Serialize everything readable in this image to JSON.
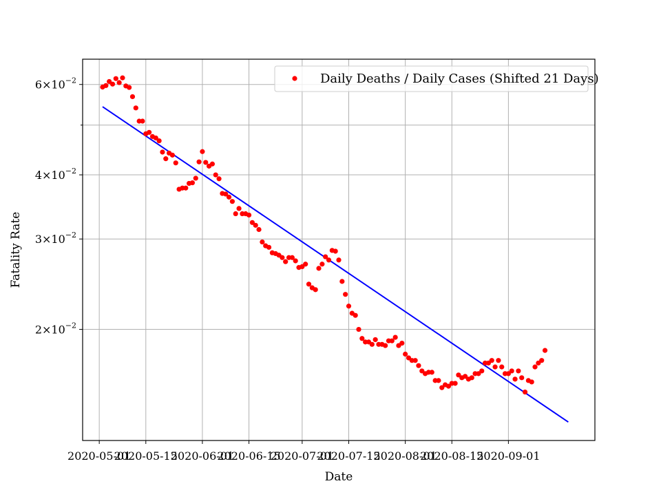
{
  "chart_data": {
    "type": "scatter",
    "title": "",
    "xlabel": "Date",
    "ylabel": "Fatality Rate",
    "y_scale": "log",
    "xlim": [
      "2020-04-26",
      "2020-09-27"
    ],
    "ylim": [
      0.01215,
      0.0672
    ],
    "grid": true,
    "legend_position": "top-right",
    "x_ticks": [
      "2020-05-01",
      "2020-05-15",
      "2020-06-01",
      "2020-06-15",
      "2020-07-01",
      "2020-07-15",
      "2020-08-01",
      "2020-08-15",
      "2020-09-01"
    ],
    "x_tick_labels": [
      "2020-05-01",
      "2020-05-15",
      "2020-06-01",
      "2020-06-15",
      "2020-07-01",
      "2020-07-15",
      "2020-08-01",
      "2020-08-15",
      "2020-09-01"
    ],
    "y_ticks": [
      0.02,
      0.03,
      0.04,
      0.06
    ],
    "y_tick_labels": [
      {
        "base": "2×10",
        "exp": "−2"
      },
      {
        "base": "3×10",
        "exp": "−2"
      },
      {
        "base": "4×10",
        "exp": "−2"
      },
      {
        "base": "6×10",
        "exp": "−2"
      }
    ],
    "y_minor_ticks": [
      0.05
    ],
    "series": [
      {
        "name": "Daily Deaths / Daily Cases (Shifted 21 Days)",
        "kind": "scatter",
        "color": "#ff0000",
        "start_date": "2020-05-02",
        "y": [
          0.0593,
          0.0597,
          0.0608,
          0.0601,
          0.0616,
          0.0605,
          0.0618,
          0.0596,
          0.0592,
          0.0568,
          0.054,
          0.0509,
          0.0509,
          0.0481,
          0.0484,
          0.0475,
          0.0472,
          0.0466,
          0.0443,
          0.043,
          0.0441,
          0.0437,
          0.0422,
          0.0375,
          0.0377,
          0.0377,
          0.0385,
          0.0386,
          0.0394,
          0.0424,
          0.0444,
          0.0423,
          0.0416,
          0.042,
          0.04,
          0.0393,
          0.0368,
          0.0367,
          0.0362,
          0.0355,
          0.0336,
          0.0344,
          0.0336,
          0.0336,
          0.0334,
          0.0323,
          0.0319,
          0.0313,
          0.0296,
          0.0291,
          0.0289,
          0.0282,
          0.0281,
          0.0279,
          0.0276,
          0.0271,
          0.0276,
          0.0276,
          0.0272,
          0.0264,
          0.0265,
          0.0268,
          0.0245,
          0.0241,
          0.0239,
          0.0263,
          0.0268,
          0.0277,
          0.0273,
          0.0285,
          0.0284,
          0.0273,
          0.0248,
          0.0234,
          0.0222,
          0.0215,
          0.0213,
          0.02,
          0.0192,
          0.0189,
          0.0189,
          0.0187,
          0.0191,
          0.0187,
          0.0187,
          0.0186,
          0.019,
          0.019,
          0.0193,
          0.0186,
          0.0188,
          0.0179,
          0.0176,
          0.0174,
          0.0174,
          0.017,
          0.0166,
          0.0164,
          0.0165,
          0.0165,
          0.0159,
          0.0159,
          0.0154,
          0.0156,
          0.0155,
          0.0157,
          0.0157,
          0.0163,
          0.0161,
          0.0162,
          0.016,
          0.0161,
          0.0164,
          0.0164,
          0.0166,
          0.0172,
          0.0172,
          0.0174,
          0.0169,
          0.0174,
          0.0169,
          0.0164,
          0.0164,
          0.0166,
          0.016,
          0.0166,
          0.0161,
          0.0151,
          0.0159,
          0.0158,
          0.0169,
          0.0172,
          0.0174,
          0.0182
        ]
      },
      {
        "name": "",
        "kind": "line",
        "color": "#0000ff",
        "x": [
          "2020-05-02",
          "2020-09-19"
        ],
        "y": [
          0.0543,
          0.0132
        ]
      }
    ]
  }
}
